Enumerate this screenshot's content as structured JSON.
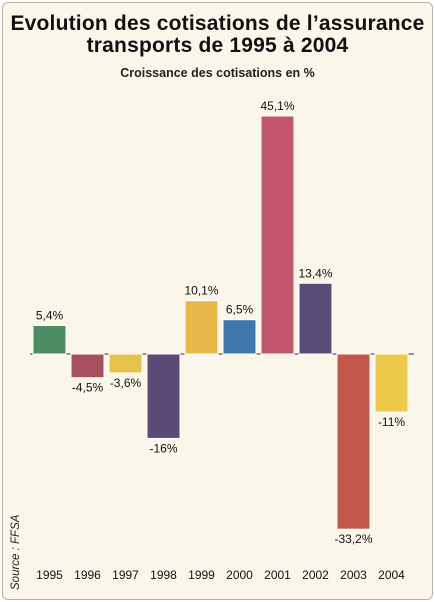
{
  "chart_data": {
    "type": "bar",
    "title_lines": [
      "Evolution des cotisations de l’assurance",
      "transports de 1995 à 2004"
    ],
    "subtitle": "Croissance des cotisations en %",
    "source": "Source : FFSA",
    "categories": [
      "1995",
      "1996",
      "1997",
      "1998",
      "1999",
      "2000",
      "2001",
      "2002",
      "2003",
      "2004"
    ],
    "values": [
      5.4,
      -4.5,
      -3.6,
      -16,
      10.1,
      6.5,
      45.1,
      13.4,
      -33.2,
      -11
    ],
    "labels": [
      "5,4%",
      "-4,5%",
      "-3,6%",
      "-16%",
      "10,1%",
      "6,5%",
      "45,1%",
      "13,4%",
      "-33,2%",
      "-11%"
    ],
    "colors": [
      "#4e8c63",
      "#a6515b",
      "#e7c24a",
      "#5b4a78",
      "#e8b84a",
      "#3f78ab",
      "#c2566a",
      "#5a4c78",
      "#c2574a",
      "#ecc94a"
    ],
    "ylim": [
      -33.2,
      45.1
    ],
    "grid": false,
    "xlabel": "",
    "ylabel": ""
  }
}
